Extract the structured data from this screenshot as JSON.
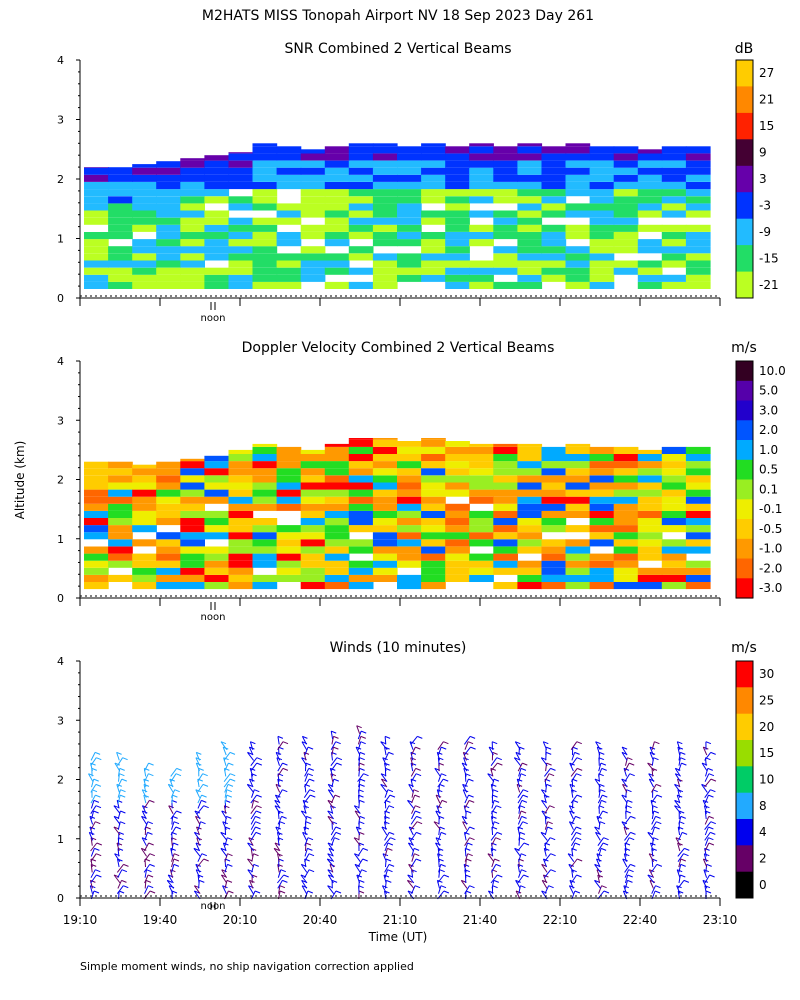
{
  "title": "M2HATS MISS Tonopah Airport NV  18 Sep 2023 Day 261",
  "ylabel": "Altitude (km)",
  "xlabel": "Time (UT)",
  "footnote": "Simple moment winds, no ship navigation correction applied",
  "noon_label": "noon",
  "chart_data": [
    {
      "type": "heatmap",
      "title": "SNR Combined 2 Vertical Beams",
      "units": "dB",
      "ylim": [
        0,
        4
      ],
      "yticks": [
        "0",
        "1",
        "2",
        "3",
        "4"
      ],
      "x_ticks": [],
      "colorbar_labels": [
        "27",
        "21",
        "15",
        "9",
        "3",
        "-3",
        "-9",
        "-15",
        "-21"
      ],
      "colorbar_colors": [
        "#ffcc00",
        "#ff8800",
        "#ff2200",
        "#440033",
        "#6600aa",
        "#0033ff",
        "#22bbff",
        "#22dd66",
        "#bbff22"
      ],
      "cloud_top_km": [
        2.2,
        2.2,
        2.25,
        2.3,
        2.35,
        2.4,
        2.45,
        2.6,
        2.55,
        2.5,
        2.55,
        2.6,
        2.6,
        2.55,
        2.6,
        2.55,
        2.6,
        2.55,
        2.6,
        2.55,
        2.6,
        2.55,
        2.55,
        2.5,
        2.55,
        2.55
      ]
    },
    {
      "type": "heatmap",
      "title": "Doppler Velocity Combined 2 Vertical Beams",
      "units": "m/s",
      "ylim": [
        0,
        4
      ],
      "yticks": [
        "0",
        "1",
        "2",
        "3",
        "4"
      ],
      "x_ticks": [],
      "colorbar_labels": [
        "10.0",
        "5.0",
        "3.0",
        "2.0",
        "1.0",
        "0.5",
        "0.1",
        "-0.1",
        "-0.5",
        "-1.0",
        "-2.0",
        "-3.0"
      ],
      "colorbar_colors": [
        "#330022",
        "#5500aa",
        "#2200cc",
        "#0055ff",
        "#00aaff",
        "#22dd22",
        "#99ee22",
        "#eeee00",
        "#ffcc00",
        "#ff9900",
        "#ff6600",
        "#ff0000"
      ],
      "cloud_top_km": [
        2.3,
        2.3,
        2.25,
        2.3,
        2.35,
        2.4,
        2.5,
        2.6,
        2.55,
        2.5,
        2.6,
        2.7,
        2.7,
        2.65,
        2.7,
        2.65,
        2.6,
        2.6,
        2.6,
        2.55,
        2.6,
        2.55,
        2.55,
        2.5,
        2.55,
        2.55
      ]
    },
    {
      "type": "wind_barbs",
      "title": "Winds (10 minutes)",
      "units": "m/s",
      "ylim": [
        0,
        4
      ],
      "yticks": [
        "0",
        "1",
        "2",
        "3",
        "4"
      ],
      "x_ticks": [
        "19:10",
        "19:40",
        "20:10",
        "20:40",
        "21:10",
        "21:40",
        "22:10",
        "22:40",
        "23:10"
      ],
      "colorbar_labels": [
        "30",
        "25",
        "20",
        "15",
        "10",
        "8",
        "4",
        "2",
        "0"
      ],
      "colorbar_colors": [
        "#ff0000",
        "#ff8800",
        "#ffcc00",
        "#99dd00",
        "#00cc66",
        "#22aaff",
        "#0000ee",
        "#660066",
        "#000000"
      ],
      "profile_tops_km": [
        2.4,
        2.4,
        2.3,
        2.2,
        2.4,
        2.6,
        2.6,
        2.7,
        2.7,
        2.8,
        2.9,
        2.7,
        2.7,
        2.6,
        2.7,
        2.6,
        2.6,
        2.6,
        2.6,
        2.6,
        2.5,
        2.6,
        2.6,
        2.6
      ]
    }
  ]
}
